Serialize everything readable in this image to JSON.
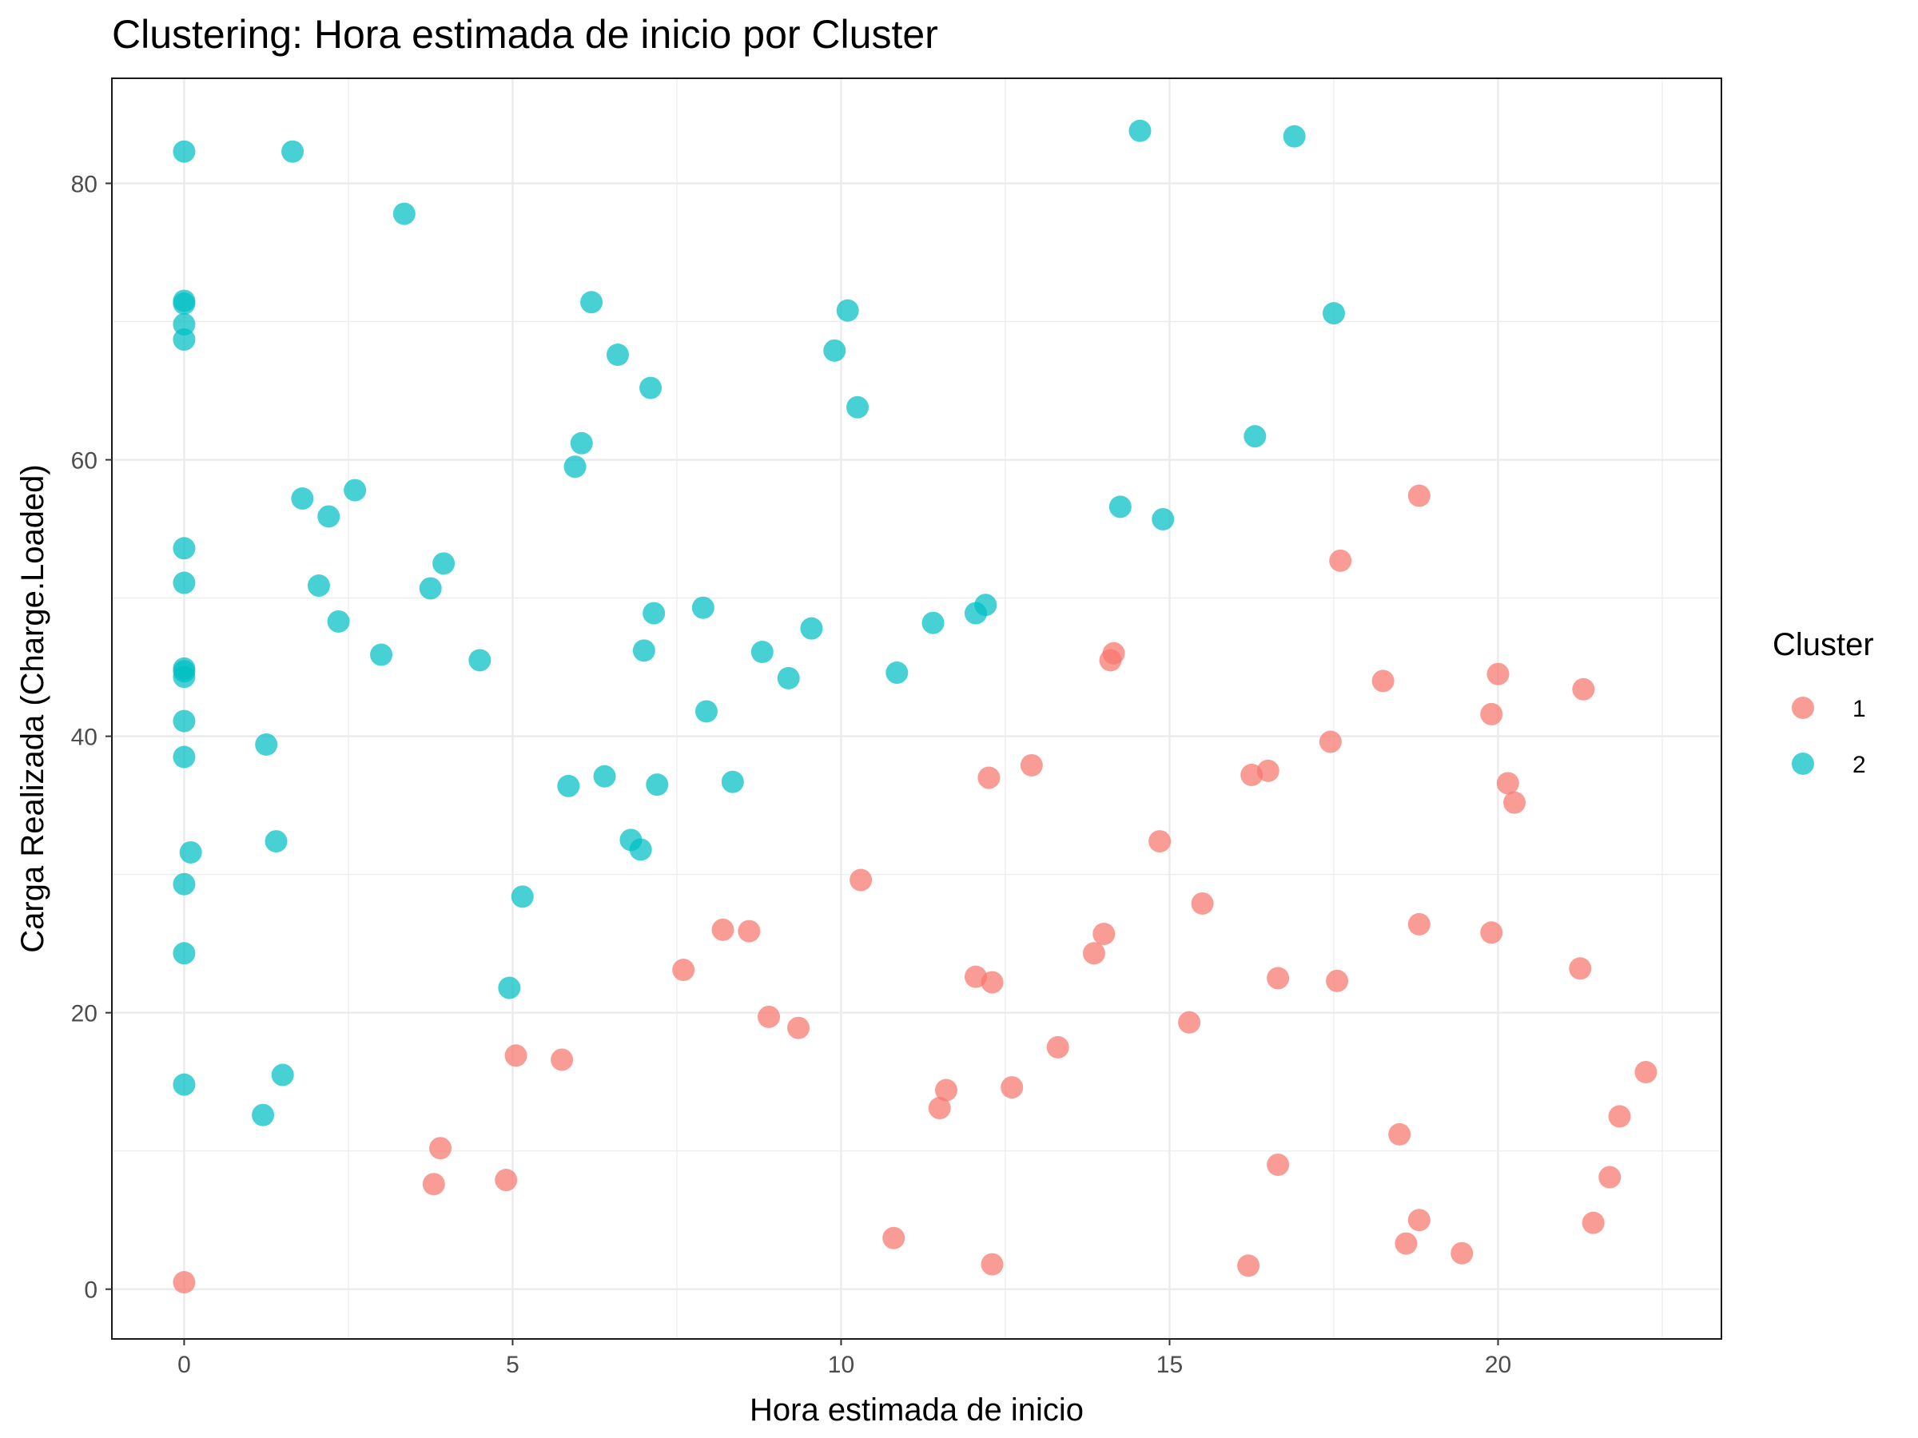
{
  "chart_data": {
    "type": "scatter",
    "title": "Clustering: Hora estimada de inicio por Cluster",
    "xlabel": "Hora estimada de inicio",
    "ylabel": "Carga Realizada (Charge.Loaded)",
    "xlim": [
      -1.1,
      23.4
    ],
    "ylim": [
      -3.6,
      87.6
    ],
    "x_ticks": [
      0,
      5,
      10,
      15,
      20
    ],
    "y_ticks": [
      0,
      20,
      40,
      60,
      80
    ],
    "grid": true,
    "legend": {
      "title": "Cluster",
      "position": "right"
    },
    "series": [
      {
        "name": "1",
        "color": "#F8766D",
        "points": [
          [
            0.0,
            0.5
          ],
          [
            3.8,
            7.6
          ],
          [
            3.9,
            10.2
          ],
          [
            4.9,
            7.9
          ],
          [
            5.05,
            16.9
          ],
          [
            5.75,
            16.6
          ],
          [
            7.6,
            23.1
          ],
          [
            8.2,
            26.0
          ],
          [
            8.6,
            25.9
          ],
          [
            8.9,
            19.7
          ],
          [
            9.35,
            18.9
          ],
          [
            10.3,
            29.6
          ],
          [
            10.8,
            3.7
          ],
          [
            11.5,
            13.1
          ],
          [
            11.6,
            14.4
          ],
          [
            12.05,
            22.6
          ],
          [
            12.25,
            37.0
          ],
          [
            12.3,
            22.2
          ],
          [
            12.3,
            1.8
          ],
          [
            12.6,
            14.6
          ],
          [
            12.9,
            37.9
          ],
          [
            13.3,
            17.5
          ],
          [
            13.85,
            24.3
          ],
          [
            14.0,
            25.7
          ],
          [
            14.1,
            45.5
          ],
          [
            14.15,
            46.0
          ],
          [
            14.85,
            32.4
          ],
          [
            15.3,
            19.3
          ],
          [
            15.5,
            27.9
          ],
          [
            16.2,
            1.7
          ],
          [
            16.25,
            37.2
          ],
          [
            16.5,
            37.5
          ],
          [
            16.65,
            9.0
          ],
          [
            16.65,
            22.5
          ],
          [
            17.45,
            39.6
          ],
          [
            17.55,
            22.3
          ],
          [
            17.6,
            52.7
          ],
          [
            18.25,
            44.0
          ],
          [
            18.5,
            11.2
          ],
          [
            18.6,
            3.3
          ],
          [
            18.8,
            57.4
          ],
          [
            18.8,
            26.4
          ],
          [
            18.8,
            5.0
          ],
          [
            19.45,
            2.6
          ],
          [
            19.9,
            25.8
          ],
          [
            19.9,
            41.6
          ],
          [
            20.0,
            44.5
          ],
          [
            20.15,
            36.6
          ],
          [
            20.25,
            35.2
          ],
          [
            21.25,
            23.2
          ],
          [
            21.3,
            43.4
          ],
          [
            21.45,
            4.8
          ],
          [
            21.7,
            8.1
          ],
          [
            21.85,
            12.5
          ],
          [
            22.25,
            15.7
          ]
        ]
      },
      {
        "name": "2",
        "color": "#00BFC4",
        "points": [
          [
            0.0,
            82.3
          ],
          [
            0.0,
            71.3
          ],
          [
            0.0,
            71.5
          ],
          [
            0.0,
            69.8
          ],
          [
            0.0,
            68.7
          ],
          [
            0.0,
            53.6
          ],
          [
            0.0,
            51.1
          ],
          [
            0.0,
            44.9
          ],
          [
            0.0,
            44.7
          ],
          [
            0.0,
            44.3
          ],
          [
            0.0,
            41.1
          ],
          [
            0.0,
            38.5
          ],
          [
            0.1,
            31.6
          ],
          [
            0.0,
            29.3
          ],
          [
            0.0,
            24.3
          ],
          [
            0.0,
            14.8
          ],
          [
            1.2,
            12.6
          ],
          [
            1.25,
            39.4
          ],
          [
            1.4,
            32.4
          ],
          [
            1.5,
            15.5
          ],
          [
            1.65,
            82.3
          ],
          [
            1.8,
            57.2
          ],
          [
            2.05,
            50.9
          ],
          [
            2.2,
            55.9
          ],
          [
            2.35,
            48.3
          ],
          [
            2.6,
            57.8
          ],
          [
            3.0,
            45.9
          ],
          [
            3.35,
            77.8
          ],
          [
            3.75,
            50.7
          ],
          [
            3.95,
            52.5
          ],
          [
            4.5,
            45.5
          ],
          [
            4.95,
            21.8
          ],
          [
            5.15,
            28.4
          ],
          [
            5.85,
            36.4
          ],
          [
            5.95,
            59.5
          ],
          [
            6.05,
            61.2
          ],
          [
            6.2,
            71.4
          ],
          [
            6.4,
            37.1
          ],
          [
            6.6,
            67.6
          ],
          [
            6.8,
            32.5
          ],
          [
            6.95,
            31.8
          ],
          [
            7.0,
            46.2
          ],
          [
            7.1,
            65.2
          ],
          [
            7.15,
            48.9
          ],
          [
            7.2,
            36.5
          ],
          [
            7.9,
            49.3
          ],
          [
            7.95,
            41.8
          ],
          [
            8.35,
            36.7
          ],
          [
            8.8,
            46.1
          ],
          [
            9.2,
            44.2
          ],
          [
            9.55,
            47.8
          ],
          [
            9.9,
            67.9
          ],
          [
            10.1,
            70.8
          ],
          [
            10.25,
            63.8
          ],
          [
            10.85,
            44.6
          ],
          [
            11.4,
            48.2
          ],
          [
            12.05,
            48.9
          ],
          [
            12.2,
            49.5
          ],
          [
            14.55,
            83.8
          ],
          [
            14.25,
            56.6
          ],
          [
            14.9,
            55.7
          ],
          [
            16.3,
            61.7
          ],
          [
            16.9,
            83.4
          ],
          [
            17.5,
            70.6
          ]
        ]
      }
    ]
  }
}
